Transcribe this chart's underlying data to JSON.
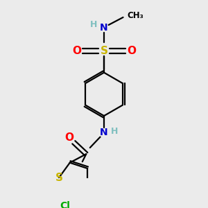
{
  "bg_color": "#ebebeb",
  "colors": {
    "S": "#c8b400",
    "O": "#ff0000",
    "N": "#0000cd",
    "Cl": "#00aa00",
    "H": "#7fbfbf",
    "C": "#000000"
  }
}
